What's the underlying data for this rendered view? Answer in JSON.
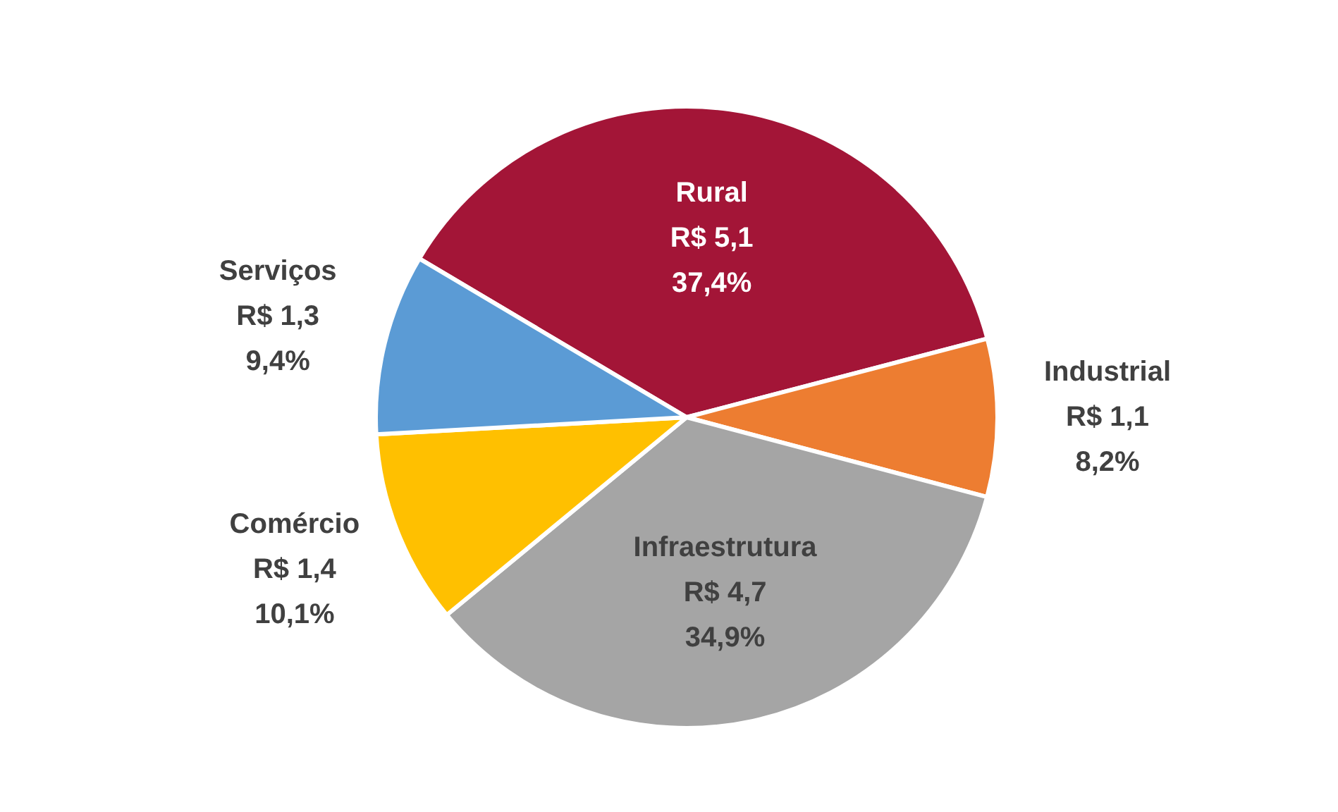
{
  "chart_data": {
    "type": "pie",
    "categories": [
      "Rural",
      "Industrial",
      "Infraestrutura",
      "Comércio",
      "Serviços"
    ],
    "values": [
      37.4,
      8.2,
      34.9,
      10.1,
      9.4
    ],
    "value_labels": [
      "R$ 5,1\n37,4%",
      "R$ 1,1\n8,2%",
      "R$ 4,7\n34,9%",
      "R$ 1,4\n10,1%",
      "R$ 1,3\n9,4%"
    ],
    "colors": [
      "#a31537",
      "#ed7d31",
      "#a5a5a5",
      "#ffc000",
      "#5b9bd5"
    ],
    "legend": false
  }
}
